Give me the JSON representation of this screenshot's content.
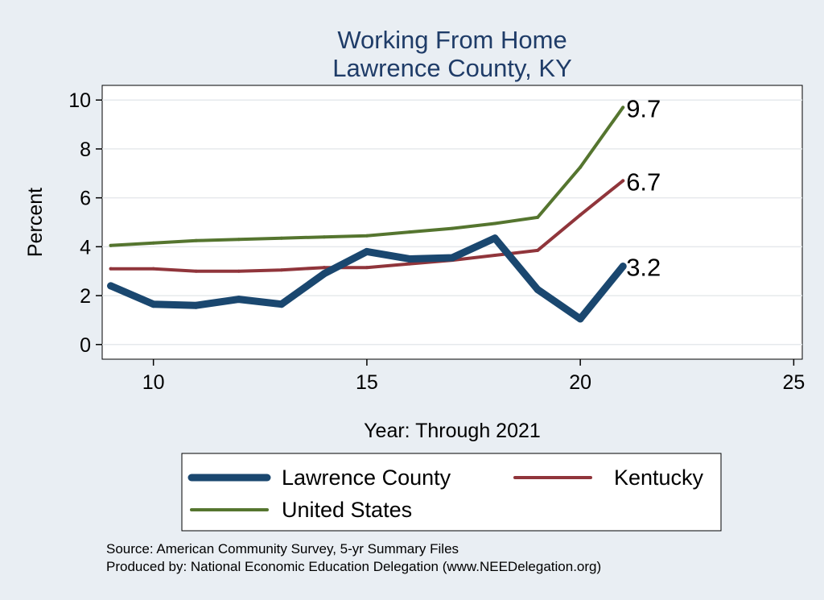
{
  "chart_data": {
    "type": "line",
    "title": [
      "Working From Home",
      "Lawrence County, KY"
    ],
    "xlabel": "Year: Through 2021",
    "ylabel": "Percent",
    "xlim": [
      8.8,
      25.2
    ],
    "ylim": [
      -0.6,
      10.6
    ],
    "xticks": [
      10,
      15,
      20,
      25
    ],
    "yticks": [
      0,
      2,
      4,
      6,
      8,
      10
    ],
    "grid": true,
    "legend": "bottom",
    "series": [
      {
        "name": "Lawrence County",
        "color": "#1a476f",
        "width": 9,
        "x": [
          9,
          10,
          11,
          12,
          13,
          14,
          15,
          16,
          17,
          18,
          19,
          20,
          21
        ],
        "values": [
          2.4,
          1.65,
          1.6,
          1.85,
          1.65,
          2.9,
          3.8,
          3.5,
          3.55,
          4.35,
          2.25,
          1.05,
          3.2
        ],
        "end_label": "3.2"
      },
      {
        "name": "Kentucky",
        "color": "#90353b",
        "width": 4,
        "x": [
          9,
          10,
          11,
          12,
          13,
          14,
          15,
          16,
          17,
          18,
          19,
          20,
          21
        ],
        "values": [
          3.1,
          3.1,
          3.0,
          3.0,
          3.05,
          3.15,
          3.15,
          3.3,
          3.45,
          3.65,
          3.85,
          5.3,
          6.7
        ],
        "end_label": "6.7"
      },
      {
        "name": "United States",
        "color": "#55752f",
        "width": 4,
        "x": [
          9,
          10,
          11,
          12,
          13,
          14,
          15,
          16,
          17,
          18,
          19,
          20,
          21
        ],
        "values": [
          4.05,
          4.15,
          4.25,
          4.3,
          4.35,
          4.4,
          4.45,
          4.6,
          4.75,
          4.95,
          5.2,
          7.25,
          9.7
        ],
        "end_label": "9.7"
      }
    ],
    "notes": [
      "Source: American Community Survey, 5-yr Summary Files",
      "Produced by: National Economic Education Delegation (www.NEEDelegation.org)"
    ]
  }
}
